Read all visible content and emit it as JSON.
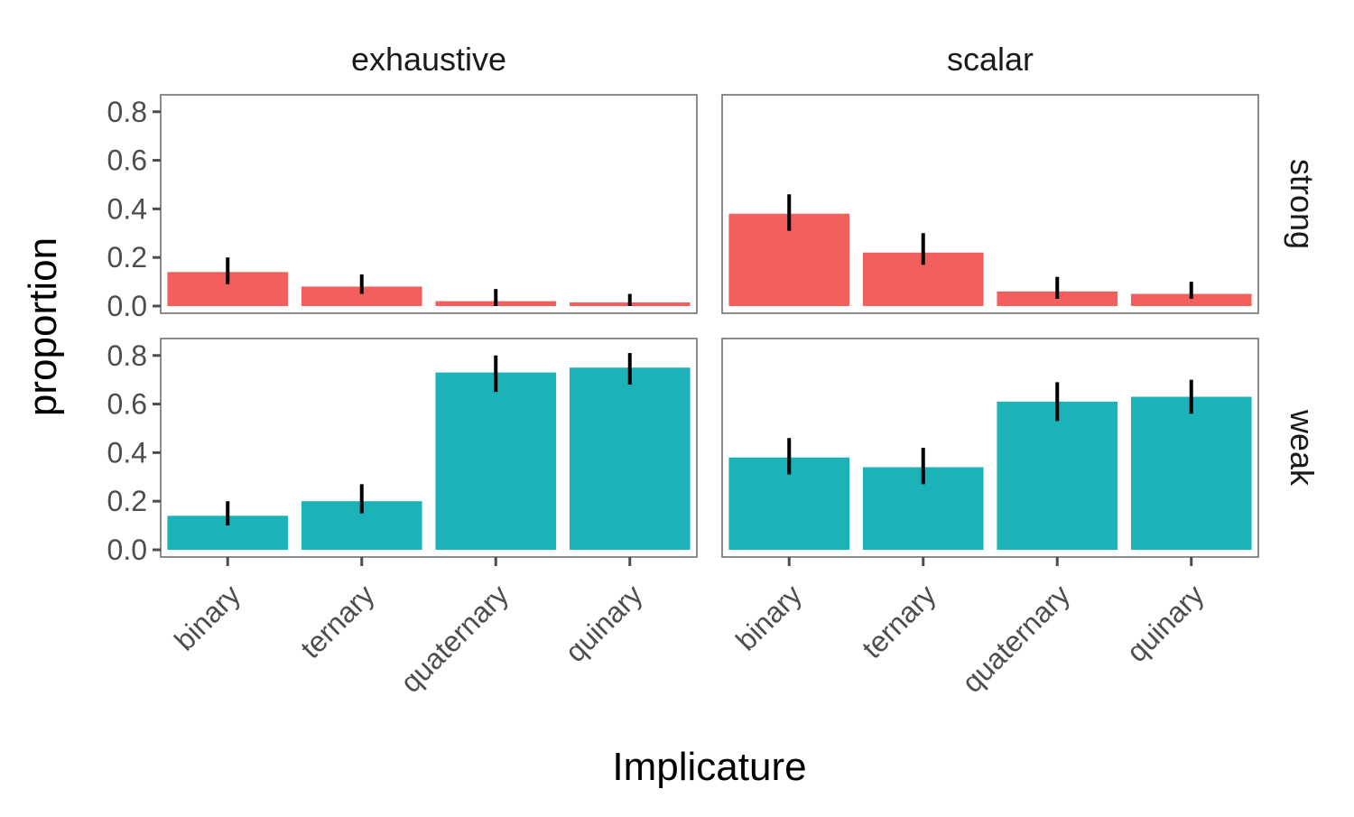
{
  "chart_data": {
    "type": "bar",
    "xlabel": "Implicature",
    "ylabel": "proportion",
    "ylim": [
      0,
      0.84
    ],
    "yticks": [
      "0.0",
      "0.2",
      "0.4",
      "0.6",
      "0.8"
    ],
    "ytick_values": [
      0,
      0.2,
      0.4,
      0.6,
      0.8
    ],
    "categories": [
      "binary",
      "ternary",
      "quaternary",
      "quinary"
    ],
    "columns": [
      "exhaustive",
      "scalar"
    ],
    "rows": [
      "strong",
      "weak"
    ],
    "grid": false,
    "colors": {
      "strong": "#F25F5C",
      "weak": "#1BB3B7"
    },
    "panels": [
      {
        "column": "exhaustive",
        "row": "strong",
        "values": [
          0.14,
          0.08,
          0.02,
          0.015
        ],
        "err_low": [
          0.09,
          0.05,
          0.0,
          0.0
        ],
        "err_high": [
          0.2,
          0.13,
          0.07,
          0.05
        ]
      },
      {
        "column": "scalar",
        "row": "strong",
        "values": [
          0.38,
          0.22,
          0.06,
          0.05
        ],
        "err_low": [
          0.31,
          0.17,
          0.03,
          0.03
        ],
        "err_high": [
          0.46,
          0.3,
          0.12,
          0.1
        ]
      },
      {
        "column": "exhaustive",
        "row": "weak",
        "values": [
          0.14,
          0.2,
          0.73,
          0.75
        ],
        "err_low": [
          0.1,
          0.15,
          0.65,
          0.68
        ],
        "err_high": [
          0.2,
          0.27,
          0.8,
          0.81
        ]
      },
      {
        "column": "scalar",
        "row": "weak",
        "values": [
          0.38,
          0.34,
          0.61,
          0.63
        ],
        "err_low": [
          0.31,
          0.27,
          0.53,
          0.56
        ],
        "err_high": [
          0.46,
          0.42,
          0.69,
          0.7
        ]
      }
    ]
  }
}
